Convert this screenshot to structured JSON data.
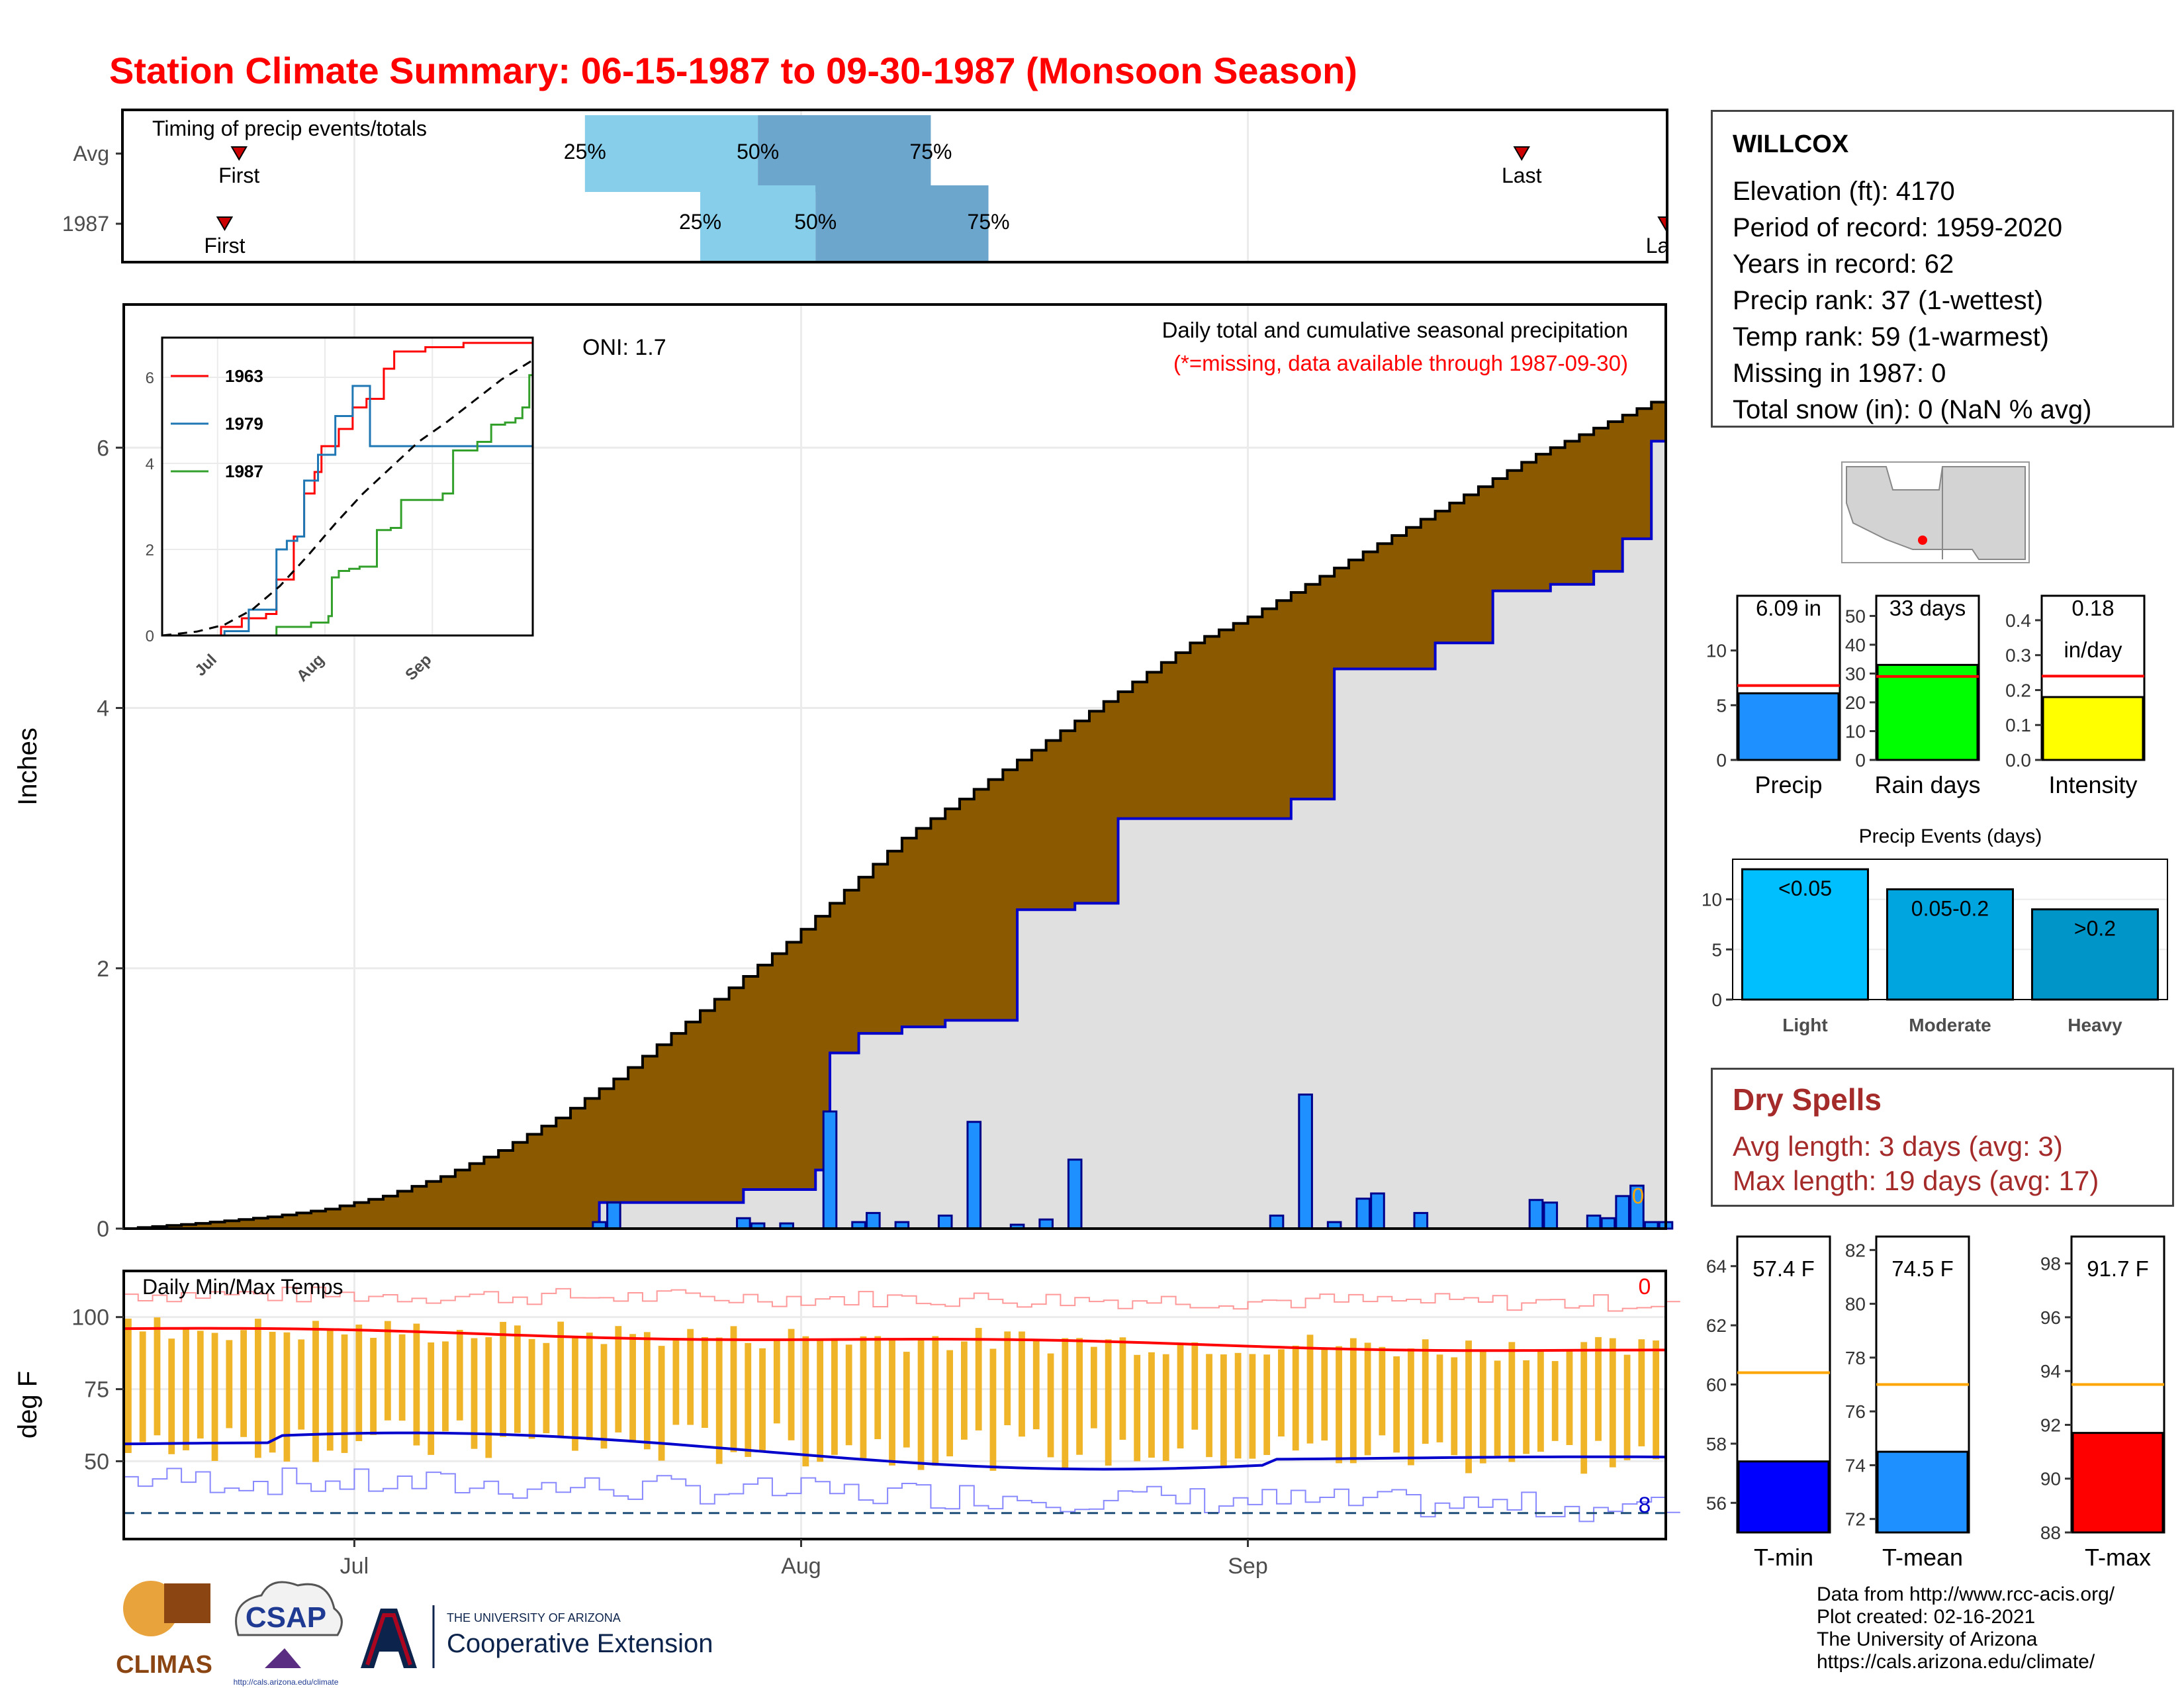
{
  "title": "Station Climate Summary: 06-15-1987 to 09-30-1987 (Monsoon Season)",
  "station": {
    "name": "WILLCOX",
    "lines": [
      "Elevation (ft): 4170",
      "Period of record: 1959-2020",
      "Years in record: 62",
      "Precip rank: 37 (1-wettest)",
      "Temp rank: 59 (1-warmest)",
      "Missing in 1987: 0",
      "Total snow (in): 0 (NaN % avg)"
    ]
  },
  "dry_spells": {
    "title": "Dry Spells",
    "avg": "Avg length: 3 days (avg: 3)",
    "max": "Max length: 19 days (avg: 17)"
  },
  "credit": [
    "Data from http://www.rcc-acis.org/",
    "Plot created: 02-16-2021",
    "The University of Arizona",
    "https://cals.arizona.edu/climate/"
  ],
  "logos": {
    "climas": "CLIMAS",
    "csap": "CSAP",
    "csap_url": "http://cals.arizona.edu/climate",
    "ua_line1": "THE UNIVERSITY OF ARIZONA",
    "ua_line2": "Cooperative Extension"
  },
  "colors": {
    "title_red": "#ff0000",
    "deficit_brown": "#8b5a00",
    "observed_fill": "#e0e0e0",
    "observed_line": "#0000cc",
    "daily_bar": "#1e90ff",
    "temp_bar": "#f0b429",
    "tmax_avg": "#ff0000",
    "tmin_avg": "#0000cc",
    "q_light": "#87ceeb",
    "q_mid": "#6ca6cd"
  },
  "chart_data": [
    {
      "id": "timing",
      "type": "bar",
      "title": "Timing of precip events/totals",
      "x_range": [
        "1987-06-15",
        "1987-09-30"
      ],
      "rows": [
        {
          "label": "Avg",
          "first": "06-23",
          "last": "09-20",
          "q25": "07-17",
          "q50": "07-29",
          "q75": "08-10",
          "q25_label": "25%",
          "q50_label": "50%",
          "q75_label": "75%",
          "first_label": "First",
          "last_label": "Last"
        },
        {
          "label": "1987",
          "first": "06-22",
          "last": "09-30",
          "q25": "07-25",
          "q50": "08-02",
          "q75": "08-14",
          "q25_label": "25%",
          "q50_label": "50%",
          "q75_label": "75%",
          "first_label": "First",
          "last_label": "Last"
        }
      ]
    },
    {
      "id": "precip-main",
      "type": "area",
      "title": "Daily total and cumulative seasonal precipitation",
      "subtitle": "(*=missing, data available through 1987-09-30)",
      "annotation": "ONI: 1.7",
      "missing_count": "0",
      "ylabel": "Inches",
      "ylim": [
        0,
        7.1
      ],
      "yticks": [
        0,
        2,
        4,
        6
      ],
      "xticks": [
        {
          "date": "07-01",
          "label": "Jul"
        },
        {
          "date": "08-01",
          "label": "Aug"
        },
        {
          "date": "09-01",
          "label": "Sep"
        }
      ],
      "avg_cumulative": [
        [
          0,
          0
        ],
        [
          5,
          0.04
        ],
        [
          10,
          0.09
        ],
        [
          14,
          0.15
        ],
        [
          18,
          0.25
        ],
        [
          22,
          0.4
        ],
        [
          26,
          0.6
        ],
        [
          30,
          0.85
        ],
        [
          34,
          1.15
        ],
        [
          38,
          1.5
        ],
        [
          42,
          1.85
        ],
        [
          46,
          2.2
        ],
        [
          50,
          2.6
        ],
        [
          54,
          3.0
        ],
        [
          58,
          3.3
        ],
        [
          62,
          3.6
        ],
        [
          66,
          3.9
        ],
        [
          70,
          4.2
        ],
        [
          74,
          4.5
        ],
        [
          78,
          4.7
        ],
        [
          82,
          4.95
        ],
        [
          86,
          5.2
        ],
        [
          90,
          5.45
        ],
        [
          94,
          5.7
        ],
        [
          98,
          5.95
        ],
        [
          102,
          6.15
        ],
        [
          107,
          6.4
        ]
      ],
      "observed_cumulative": [
        [
          0,
          0
        ],
        [
          33,
          0.2
        ],
        [
          43,
          0.3
        ],
        [
          48,
          0.45
        ],
        [
          49,
          1.35
        ],
        [
          51,
          1.5
        ],
        [
          54,
          1.55
        ],
        [
          57,
          1.6
        ],
        [
          62,
          2.45
        ],
        [
          66,
          2.5
        ],
        [
          69,
          3.15
        ],
        [
          81,
          3.3
        ],
        [
          84,
          4.3
        ],
        [
          91,
          4.5
        ],
        [
          95,
          4.9
        ],
        [
          99,
          4.95
        ],
        [
          102,
          5.05
        ],
        [
          104,
          5.3
        ],
        [
          106,
          6.05
        ],
        [
          107,
          6.1
        ]
      ],
      "daily_values": [
        [
          33,
          0.05
        ],
        [
          34,
          0.2
        ],
        [
          43,
          0.08
        ],
        [
          44,
          0.04
        ],
        [
          46,
          0.04
        ],
        [
          49,
          0.9
        ],
        [
          51,
          0.05
        ],
        [
          52,
          0.12
        ],
        [
          54,
          0.05
        ],
        [
          57,
          0.1
        ],
        [
          59,
          0.82
        ],
        [
          62,
          0.03
        ],
        [
          64,
          0.07
        ],
        [
          66,
          0.53
        ],
        [
          80,
          0.1
        ],
        [
          82,
          1.03
        ],
        [
          84,
          0.05
        ],
        [
          86,
          0.23
        ],
        [
          87,
          0.27
        ],
        [
          90,
          0.12
        ],
        [
          98,
          0.22
        ],
        [
          99,
          0.2
        ],
        [
          102,
          0.1
        ],
        [
          103,
          0.08
        ],
        [
          104,
          0.25
        ],
        [
          105,
          0.33
        ],
        [
          106,
          0.05
        ],
        [
          107,
          0.05
        ]
      ]
    },
    {
      "id": "precip-inset",
      "type": "line",
      "ylim": [
        0,
        6.8
      ],
      "yticks": [
        0,
        2,
        4,
        6
      ],
      "xticks": [
        {
          "date": "07-01",
          "label": "Jul"
        },
        {
          "date": "08-01",
          "label": "Aug"
        },
        {
          "date": "09-01",
          "label": "Sep"
        }
      ],
      "series": [
        {
          "name": "1963",
          "color": "#ff0000",
          "points": [
            [
              0,
              0
            ],
            [
              17,
              0.2
            ],
            [
              23,
              0.4
            ],
            [
              30,
              0.5
            ],
            [
              33,
              1.3
            ],
            [
              35,
              1.3
            ],
            [
              38,
              2.3
            ],
            [
              41,
              3.3
            ],
            [
              44,
              3.8
            ],
            [
              46,
              4.4
            ],
            [
              51,
              4.8
            ],
            [
              55,
              5.3
            ],
            [
              59,
              5.5
            ],
            [
              64,
              6.2
            ],
            [
              67,
              6.6
            ],
            [
              76,
              6.7
            ],
            [
              83,
              6.7
            ],
            [
              87,
              6.8
            ],
            [
              107,
              6.8
            ]
          ]
        },
        {
          "name": "1979",
          "color": "#1f77b4",
          "points": [
            [
              0,
              0
            ],
            [
              18,
              0.1
            ],
            [
              25,
              0.6
            ],
            [
              29,
              0.6
            ],
            [
              33,
              2.0
            ],
            [
              36,
              2.2
            ],
            [
              39,
              2.3
            ],
            [
              41,
              3.6
            ],
            [
              45,
              4.2
            ],
            [
              50,
              5.1
            ],
            [
              55,
              5.8
            ],
            [
              58,
              5.8
            ],
            [
              60,
              4.4
            ],
            [
              107,
              4.6
            ]
          ]
        },
        {
          "name": "1987",
          "color": "#33a02c",
          "points": [
            [
              0,
              0
            ],
            [
              33,
              0.2
            ],
            [
              43,
              0.3
            ],
            [
              48,
              0.45
            ],
            [
              49,
              1.35
            ],
            [
              51,
              1.5
            ],
            [
              54,
              1.55
            ],
            [
              57,
              1.6
            ],
            [
              62,
              2.45
            ],
            [
              66,
              2.5
            ],
            [
              69,
              3.15
            ],
            [
              81,
              3.3
            ],
            [
              84,
              4.3
            ],
            [
              91,
              4.5
            ],
            [
              95,
              4.9
            ],
            [
              99,
              4.95
            ],
            [
              102,
              5.05
            ],
            [
              104,
              5.3
            ],
            [
              106,
              6.05
            ],
            [
              107,
              6.1
            ]
          ]
        }
      ],
      "avg_line": [
        [
          0,
          0
        ],
        [
          10,
          0.09
        ],
        [
          18,
          0.25
        ],
        [
          26,
          0.6
        ],
        [
          34,
          1.15
        ],
        [
          42,
          1.85
        ],
        [
          50,
          2.6
        ],
        [
          58,
          3.3
        ],
        [
          66,
          3.9
        ],
        [
          74,
          4.5
        ],
        [
          82,
          4.95
        ],
        [
          90,
          5.45
        ],
        [
          98,
          5.95
        ],
        [
          107,
          6.4
        ]
      ]
    },
    {
      "id": "summary-bars",
      "type": "bar",
      "panels": [
        {
          "name": "Precip",
          "value": 6.09,
          "label": "6.09 in",
          "avg": 6.8,
          "ylim": [
            0,
            15
          ],
          "yticks": [
            0,
            5,
            10
          ],
          "color": "#1e90ff"
        },
        {
          "name": "Rain days",
          "value": 33,
          "label": "33 days",
          "avg": 29,
          "ylim": [
            0,
            57
          ],
          "yticks": [
            0,
            10,
            20,
            30,
            40,
            50
          ],
          "color": "#00ff00"
        },
        {
          "name": "Intensity",
          "value": 0.18,
          "label": "0.18",
          "unit": "in/day",
          "avg": 0.24,
          "ylim": [
            0,
            0.47
          ],
          "yticks": [
            "0.0",
            "0.1",
            "0.2",
            "0.3",
            "0.4"
          ],
          "color": "#ffff00"
        }
      ]
    },
    {
      "id": "precip-events",
      "type": "bar",
      "title": "Precip Events (days)",
      "categories": [
        "Light",
        "Moderate",
        "Heavy"
      ],
      "labels": [
        "<0.05",
        "0.05-0.2",
        ">0.2"
      ],
      "values": [
        13,
        11,
        9
      ],
      "ylim": [
        0,
        14
      ],
      "yticks": [
        0,
        5,
        10
      ],
      "colors": [
        "#00bfff",
        "#00a5e0",
        "#0095c8"
      ]
    },
    {
      "id": "temps",
      "type": "bar",
      "title": "Daily Min/Max Temps",
      "ylabel": "deg F",
      "ylim": [
        23,
        116
      ],
      "yticks": [
        50,
        75,
        100
      ],
      "hot_count": "0",
      "cold_count": "8",
      "threshold": 32,
      "avg_tmax_start": 96,
      "avg_tmax_end": 88,
      "avg_tmin_start": 56,
      "avg_tmin_end": 50
    },
    {
      "id": "temp-summary",
      "type": "bar",
      "panels": [
        {
          "name": "T-min",
          "value": 57.4,
          "label": "57.4 F",
          "avg": 60.4,
          "ylim": [
            55,
            65
          ],
          "yticks": [
            56,
            58,
            60,
            62,
            64
          ],
          "color": "#0000ff"
        },
        {
          "name": "T-mean",
          "value": 74.5,
          "label": "74.5 F",
          "avg": 77.0,
          "ylim": [
            71.5,
            82.5
          ],
          "yticks": [
            72,
            74,
            76,
            78,
            80,
            82
          ],
          "color": "#1e90ff"
        },
        {
          "name": "T-max",
          "value": 91.7,
          "label": "91.7 F",
          "avg": 93.5,
          "ylim": [
            88,
            99
          ],
          "yticks": [
            88,
            90,
            92,
            94,
            96,
            98
          ],
          "color": "#ff0000"
        }
      ]
    }
  ]
}
